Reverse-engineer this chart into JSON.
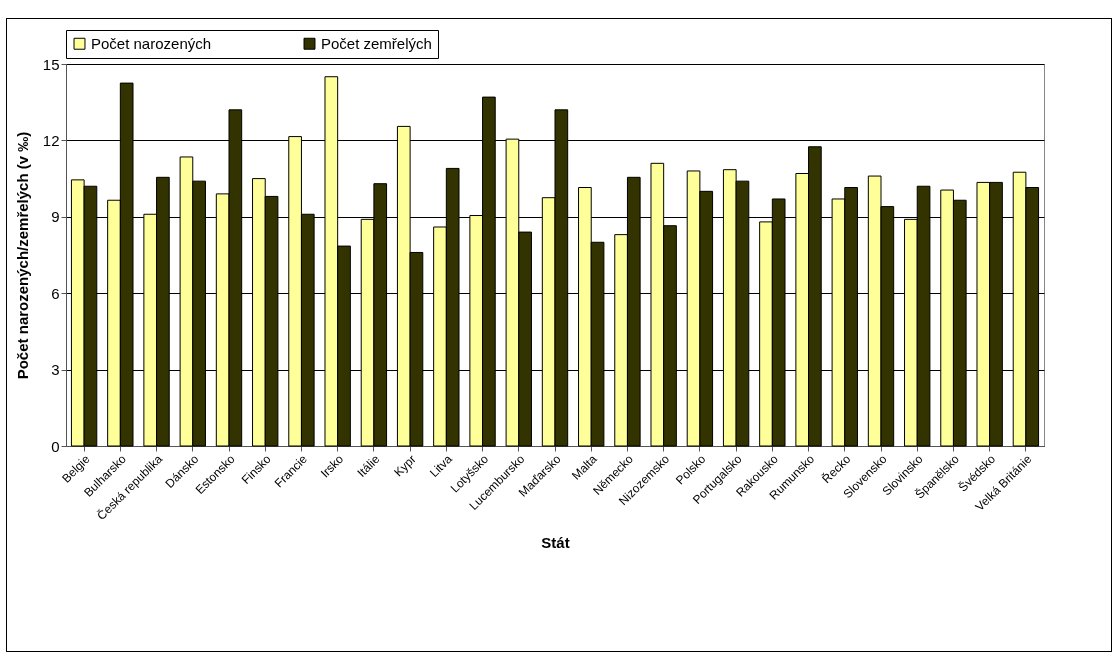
{
  "chart_data": {
    "type": "bar",
    "xlabel": "Stát",
    "ylabel": "Počet narozených/zemřelých (v ‰)",
    "categories": [
      "Belgie",
      "Bulharsko",
      "Česká republika",
      "Dánsko",
      "Estonsko",
      "Finsko",
      "Francie",
      "Irsko",
      "Itálie",
      "Kypr",
      "Litva",
      "Lotyšsko",
      "Lucembursko",
      "Maďarsko",
      "Malta",
      "Německo",
      "Nizozemsko",
      "Polsko",
      "Portugalsko",
      "Rakousko",
      "Rumunsko",
      "Řecko",
      "Slovensko",
      "Slovinsko",
      "Španělsko",
      "Švédsko",
      "Velká Británie"
    ],
    "series": [
      {
        "name": "Počet narozených",
        "color": "#ffff99",
        "values": [
          10.45,
          9.65,
          9.1,
          11.35,
          9.9,
          10.5,
          12.15,
          14.5,
          8.9,
          12.55,
          8.6,
          9.05,
          12.05,
          9.75,
          10.15,
          8.3,
          11.1,
          10.8,
          10.85,
          8.8,
          10.7,
          9.7,
          10.6,
          8.9,
          10.05,
          10.35,
          10.75
        ]
      },
      {
        "name": "Počet zemřelých",
        "color": "#333300",
        "values": [
          10.2,
          14.25,
          10.55,
          10.4,
          13.2,
          9.8,
          9.1,
          7.85,
          10.3,
          7.6,
          10.9,
          13.7,
          8.4,
          13.2,
          8.0,
          10.55,
          8.65,
          10.0,
          10.4,
          9.7,
          11.75,
          10.15,
          9.4,
          10.2,
          9.65,
          10.35,
          10.15
        ]
      }
    ],
    "ylim": [
      0,
      15
    ],
    "yticks": [
      0,
      3,
      6,
      9,
      12,
      15
    ],
    "grid": "y",
    "legend": "top"
  }
}
